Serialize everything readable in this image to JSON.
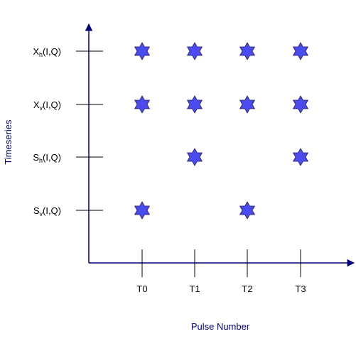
{
  "diagram": {
    "y_axis_title": "Timeseries",
    "x_axis_title": "Pulse Number",
    "pulses": [
      "T0",
      "T1",
      "T2",
      "T3"
    ],
    "series": [
      {
        "base": "X",
        "sub": "h",
        "suffix": "(I,Q)",
        "present": [
          true,
          true,
          true,
          true
        ]
      },
      {
        "base": "X",
        "sub": "v",
        "suffix": "(I,Q)",
        "present": [
          true,
          true,
          true,
          true
        ]
      },
      {
        "base": "S",
        "sub": "h",
        "suffix": "(I,Q)",
        "present": [
          false,
          true,
          false,
          true
        ]
      },
      {
        "base": "S",
        "sub": "v",
        "suffix": "(I,Q)",
        "present": [
          true,
          false,
          true,
          false
        ]
      }
    ],
    "colors": {
      "axis": "#000080",
      "axis_title": "#000080",
      "marker_fill": "#4B4BF0",
      "marker_stroke": "#1A1A66",
      "tick": "#000000"
    },
    "marker_icon": "six-point-star-icon"
  }
}
